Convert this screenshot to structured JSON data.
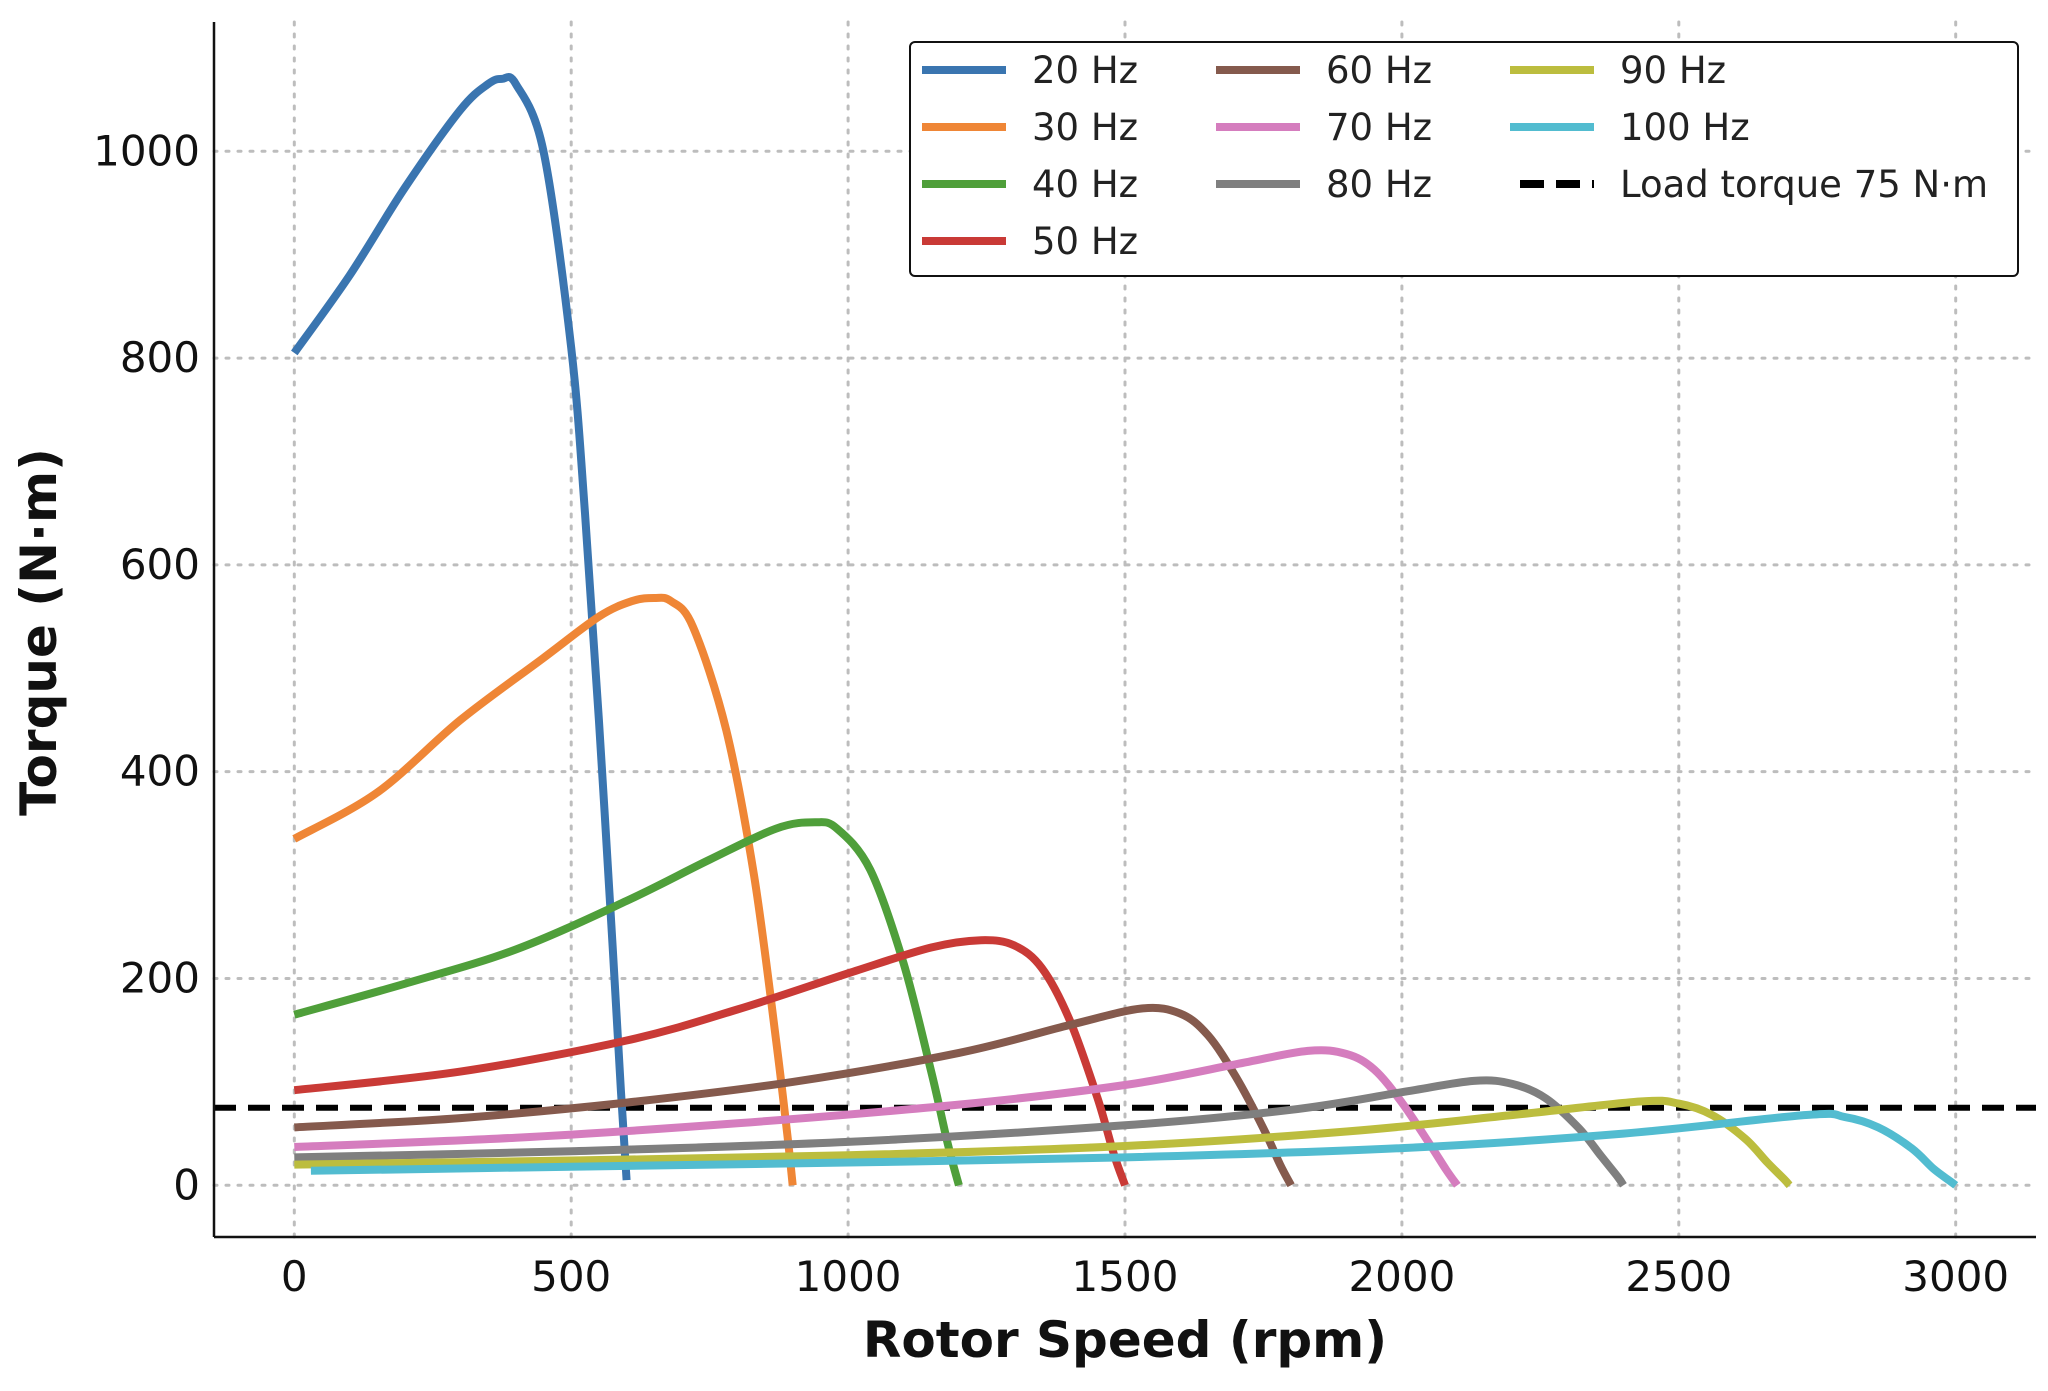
{
  "chart_data": {
    "type": "line",
    "title": "",
    "xlabel": "Rotor Speed (rpm)",
    "ylabel": "Torque (N·m)",
    "xlim": [
      -145,
      3145
    ],
    "ylim": [
      -50,
      1125
    ],
    "xticks": [
      0,
      500,
      1000,
      1500,
      2000,
      2500,
      3000
    ],
    "yticks": [
      0,
      200,
      400,
      600,
      800,
      1000
    ],
    "xtick_labels": [
      "0",
      "500",
      "1000",
      "1500",
      "2000",
      "2500",
      "3000"
    ],
    "ytick_labels": [
      "0",
      "200",
      "400",
      "600",
      "800",
      "1000"
    ],
    "grid": true,
    "legend_position": "top-right",
    "legend_columns": 3,
    "series": [
      {
        "name": "20 Hz",
        "color": "#3a75b0",
        "x": [
          0,
          100,
          200,
          300,
          350,
          375,
          400,
          450,
          500,
          525,
          550,
          575,
          590,
          600
        ],
        "y": [
          805,
          880,
          965,
          1040,
          1065,
          1070,
          1065,
          1000,
          810,
          650,
          450,
          230,
          90,
          5
        ]
      },
      {
        "name": "30 Hz",
        "color": "#ef8636",
        "x": [
          0,
          150,
          300,
          450,
          550,
          610,
          650,
          680,
          720,
          780,
          830,
          870,
          890,
          900
        ],
        "y": [
          335,
          380,
          450,
          510,
          550,
          565,
          568,
          565,
          540,
          440,
          300,
          140,
          50,
          0
        ]
      },
      {
        "name": "40 Hz",
        "color": "#4f9f3a",
        "x": [
          0,
          200,
          400,
          600,
          750,
          870,
          940,
          980,
          1040,
          1100,
          1150,
          1180,
          1200
        ],
        "y": [
          165,
          195,
          228,
          275,
          315,
          345,
          351,
          345,
          305,
          215,
          110,
          40,
          0
        ]
      },
      {
        "name": "50 Hz",
        "color": "#c93a36",
        "x": [
          0,
          300,
          600,
          800,
          1000,
          1150,
          1240,
          1300,
          1350,
          1400,
          1450,
          1480,
          1500
        ],
        "y": [
          92,
          110,
          140,
          170,
          205,
          230,
          237,
          232,
          210,
          160,
          85,
          30,
          0
        ]
      },
      {
        "name": "60 Hz",
        "color": "#855a4d",
        "x": [
          0,
          300,
          600,
          900,
          1200,
          1400,
          1530,
          1600,
          1650,
          1700,
          1750,
          1780,
          1800
        ],
        "y": [
          56,
          65,
          80,
          100,
          128,
          155,
          171,
          166,
          145,
          105,
          55,
          20,
          0
        ]
      },
      {
        "name": "70 Hz",
        "color": "#d57dbe",
        "x": [
          0,
          400,
          800,
          1200,
          1500,
          1700,
          1830,
          1900,
          1950,
          2000,
          2050,
          2080,
          2100
        ],
        "y": [
          37,
          46,
          60,
          78,
          97,
          117,
          130,
          127,
          112,
          80,
          40,
          15,
          0
        ]
      },
      {
        "name": "80 Hz",
        "color": "#7f7f7f",
        "x": [
          0,
          500,
          1000,
          1500,
          1800,
          2000,
          2130,
          2200,
          2260,
          2320,
          2360,
          2390,
          2400
        ],
        "y": [
          27,
          33,
          42,
          58,
          73,
          90,
          101,
          98,
          84,
          55,
          28,
          8,
          0
        ]
      },
      {
        "name": "90 Hz",
        "color": "#bcbd3e",
        "x": [
          0,
          500,
          1000,
          1500,
          1900,
          2200,
          2430,
          2500,
          2560,
          2620,
          2660,
          2690,
          2700
        ],
        "y": [
          20,
          24,
          29,
          38,
          52,
          68,
          81,
          79,
          68,
          45,
          22,
          6,
          0
        ]
      },
      {
        "name": "100 Hz",
        "color": "#52bcd0",
        "x": [
          30,
          500,
          1000,
          1500,
          2000,
          2400,
          2730,
          2800,
          2860,
          2920,
          2960,
          2990,
          3000
        ],
        "y": [
          14,
          18,
          22,
          27,
          36,
          50,
          68,
          66,
          56,
          36,
          16,
          4,
          0
        ]
      }
    ],
    "reference_lines": [
      {
        "name": "Load torque 75 N·m",
        "y": 75,
        "style": "dashed",
        "color": "#000000"
      }
    ]
  }
}
